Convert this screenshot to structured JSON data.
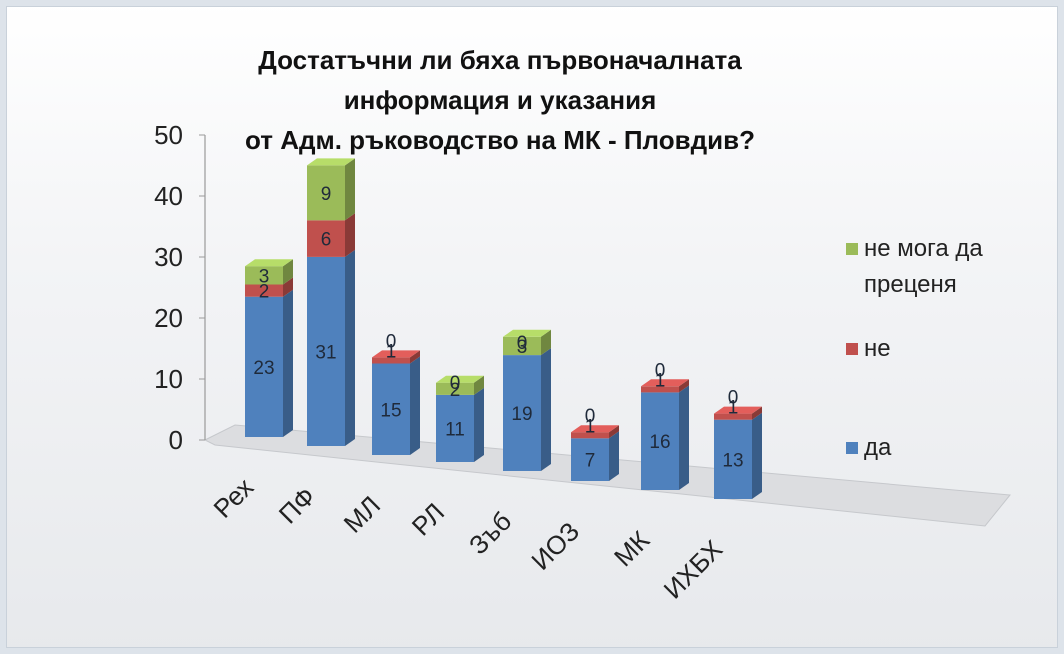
{
  "chart_data": {
    "type": "bar",
    "stacked": true,
    "three_d": true,
    "title_lines": [
      "Достатъчни ли бяха първоначалната",
      "информация и указания",
      "от Адм. ръководство на МК - Пловдив?"
    ],
    "categories": [
      "Рех",
      "ПФ",
      "МЛ",
      "РЛ",
      "Зъб",
      "ИОЗ",
      "МК",
      "ИХБХ"
    ],
    "series": [
      {
        "name": "да",
        "color": "#4f81bd",
        "values": [
          23,
          31,
          15,
          11,
          19,
          7,
          16,
          13
        ]
      },
      {
        "name": "не",
        "color": "#c0504d",
        "values": [
          2,
          6,
          1,
          0,
          0,
          1,
          1,
          1
        ]
      },
      {
        "name": "не мога да преценя",
        "color": "#9bbb59",
        "values": [
          3,
          9,
          0,
          2,
          3,
          0,
          0,
          0
        ]
      }
    ],
    "data_labels": [
      [
        "23",
        "2",
        "3"
      ],
      [
        "31",
        "6",
        "9"
      ],
      [
        "15",
        "1",
        "0"
      ],
      [
        "11",
        "0",
        "2"
      ],
      [
        "19",
        "0",
        "3"
      ],
      [
        "7",
        "1",
        "0"
      ],
      [
        "16",
        "1",
        "0"
      ],
      [
        "13",
        "1",
        "0"
      ]
    ],
    "y_ticks": [
      "0",
      "10",
      "20",
      "30",
      "40",
      "50"
    ],
    "ylim": [
      0,
      50
    ],
    "legend_position": "right",
    "legend_order": [
      "не мога да преценя",
      "не",
      "да"
    ]
  },
  "legend": {
    "item_0_line1": "не мога да",
    "item_0_line2": "преценя",
    "item_1": "не",
    "item_2": "да"
  }
}
